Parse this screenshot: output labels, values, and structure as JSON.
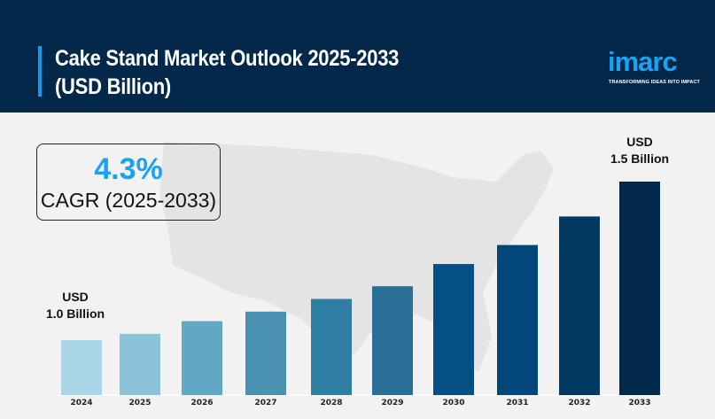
{
  "header": {
    "title_line1": "Cake Stand Market Outlook 2025-2033",
    "title_line2": "(USD Billion)",
    "logo": "imarc",
    "tagline": "TRANSFORMING IDEAS INTO IMPACT"
  },
  "cagr": {
    "value": "4.3%",
    "label": "CAGR (2025-2033)"
  },
  "annotations": {
    "start_line1": "USD",
    "start_line2": "1.0 Billion",
    "end_line1": "USD",
    "end_line2": "1.5 Billion"
  },
  "chart_data": {
    "type": "bar",
    "categories": [
      "2024",
      "2025",
      "2026",
      "2027",
      "2028",
      "2029",
      "2030",
      "2031",
      "2032",
      "2033"
    ],
    "values": [
      1.0,
      1.02,
      1.06,
      1.09,
      1.13,
      1.17,
      1.24,
      1.3,
      1.39,
      1.5
    ],
    "unit": "USD Billion",
    "colors": [
      "#a9d6e6",
      "#8cc3da",
      "#62a7c4",
      "#4a91b2",
      "#2f7ea3",
      "#2a6f97",
      "#044f83",
      "#03467a",
      "#033a63",
      "#022a4a"
    ],
    "background_map": "USA silhouette"
  }
}
